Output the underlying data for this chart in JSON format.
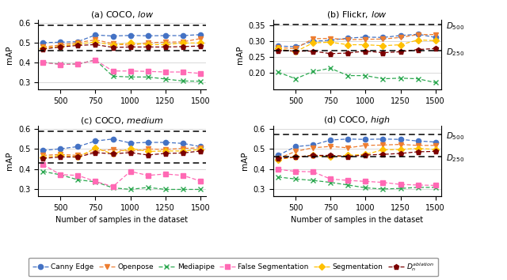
{
  "x": [
    375,
    500,
    625,
    750,
    875,
    1000,
    1125,
    1250,
    1375,
    1500
  ],
  "panels": [
    {
      "title": "(a) COCO, ",
      "title_italic": "low",
      "ylim": [
        0.265,
        0.615
      ],
      "yticks": [
        0.3,
        0.4,
        0.5,
        0.6
      ],
      "ytick_labels": [
        "0.3",
        "0.4",
        "0.5",
        "0.6"
      ],
      "d500": 0.588,
      "d250": 0.459,
      "show_right_labels": false,
      "series": {
        "canny": [
          0.5,
          0.502,
          0.505,
          0.538,
          0.533,
          0.536,
          0.534,
          0.535,
          0.535,
          0.54
        ],
        "openpose": [
          0.478,
          0.488,
          0.5,
          0.514,
          0.495,
          0.486,
          0.5,
          0.502,
          0.504,
          0.52
        ],
        "mediapipe": [
          0.402,
          0.392,
          0.393,
          0.413,
          0.332,
          0.328,
          0.328,
          0.318,
          0.308,
          0.307
        ],
        "falseseg": [
          0.401,
          0.39,
          0.393,
          0.412,
          0.358,
          0.358,
          0.356,
          0.353,
          0.353,
          0.346
        ],
        "segmentation": [
          0.473,
          0.481,
          0.493,
          0.503,
          0.488,
          0.498,
          0.49,
          0.49,
          0.498,
          0.498
        ],
        "ablation": [
          0.468,
          0.478,
          0.486,
          0.49,
          0.476,
          0.478,
          0.478,
          0.478,
          0.48,
          0.483
        ]
      }
    },
    {
      "title": "(b) Flickr, ",
      "title_italic": "low",
      "ylim": [
        0.148,
        0.368
      ],
      "yticks": [
        0.2,
        0.25,
        0.3,
        0.35
      ],
      "ytick_labels": [
        "0.20",
        "0.25",
        "0.30",
        "0.35"
      ],
      "d500": 0.352,
      "d250": 0.27,
      "show_right_labels": true,
      "series": {
        "canny": [
          0.285,
          0.283,
          0.3,
          0.303,
          0.31,
          0.313,
          0.312,
          0.318,
          0.322,
          0.312
        ],
        "openpose": [
          0.28,
          0.277,
          0.308,
          0.309,
          0.305,
          0.306,
          0.307,
          0.312,
          0.321,
          0.321
        ],
        "mediapipe": [
          0.203,
          0.182,
          0.205,
          0.215,
          0.192,
          0.192,
          0.182,
          0.184,
          0.182,
          0.17
        ],
        "falseseg": [
          null,
          null,
          null,
          null,
          null,
          null,
          null,
          null,
          null,
          null
        ],
        "segmentation": [
          0.277,
          0.267,
          0.295,
          0.297,
          0.289,
          0.289,
          0.286,
          0.289,
          0.304,
          0.302
        ],
        "ablation": [
          0.271,
          0.269,
          0.269,
          0.261,
          0.263,
          0.269,
          0.264,
          0.267,
          0.274,
          0.277
        ]
      }
    },
    {
      "title": "(c) COCO, ",
      "title_italic": "medium",
      "ylim": [
        0.265,
        0.615
      ],
      "yticks": [
        0.3,
        0.4,
        0.5,
        0.6
      ],
      "ytick_labels": [
        "0.3",
        "0.4",
        "0.5",
        "0.6"
      ],
      "d500": 0.588,
      "d250": 0.432,
      "show_right_labels": false,
      "series": {
        "canny": [
          0.493,
          0.501,
          0.512,
          0.54,
          0.55,
          0.53,
          0.533,
          0.533,
          0.528,
          0.512
        ],
        "openpose": [
          0.468,
          0.473,
          0.468,
          0.488,
          0.498,
          0.488,
          0.5,
          0.498,
          0.503,
          0.506
        ],
        "mediapipe": [
          0.388,
          0.371,
          0.346,
          0.336,
          0.306,
          0.298,
          0.308,
          0.298,
          0.298,
          0.298
        ],
        "falseseg": [
          0.422,
          0.372,
          0.368,
          0.338,
          0.312,
          0.388,
          0.368,
          0.375,
          0.368,
          0.34
        ],
        "segmentation": [
          0.458,
          0.468,
          0.46,
          0.504,
          0.476,
          0.503,
          0.488,
          0.49,
          0.49,
          0.498
        ],
        "ablation": [
          0.453,
          0.46,
          0.46,
          0.482,
          0.476,
          0.482,
          0.47,
          0.478,
          0.48,
          0.49
        ]
      }
    },
    {
      "title": "(d) COCO, ",
      "title_italic": "high",
      "ylim": [
        0.265,
        0.615
      ],
      "yticks": [
        0.3,
        0.4,
        0.5,
        0.6
      ],
      "ytick_labels": [
        "0.3",
        "0.4",
        "0.5",
        "0.6"
      ],
      "d500": 0.572,
      "d250": 0.462,
      "show_right_labels": true,
      "series": {
        "canny": [
          0.468,
          0.512,
          0.52,
          0.545,
          0.55,
          0.548,
          0.55,
          0.548,
          0.54,
          0.535
        ],
        "openpose": [
          0.453,
          0.488,
          0.506,
          0.513,
          0.506,
          0.518,
          0.52,
          0.523,
          0.518,
          0.518
        ],
        "mediapipe": [
          0.36,
          0.35,
          0.343,
          0.333,
          0.32,
          0.306,
          0.3,
          0.303,
          0.308,
          0.308
        ],
        "falseseg": [
          0.398,
          0.388,
          0.386,
          0.35,
          0.343,
          0.338,
          0.333,
          0.323,
          0.32,
          0.318
        ],
        "segmentation": [
          0.448,
          0.46,
          0.468,
          0.46,
          0.468,
          0.473,
          0.496,
          0.498,
          0.503,
          0.498
        ],
        "ablation": [
          0.453,
          0.46,
          0.468,
          0.468,
          0.463,
          0.47,
          0.473,
          0.478,
          0.486,
          0.488
        ]
      }
    }
  ],
  "colors": {
    "canny": "#4472C4",
    "openpose": "#ED7D31",
    "mediapipe": "#2CA850",
    "falseseg": "#FF69B4",
    "segmentation": "#FFC000",
    "ablation": "#7B0000"
  },
  "markers": {
    "canny": "o",
    "openpose": "v",
    "mediapipe": "x",
    "falseseg": "s",
    "segmentation": "D",
    "ablation": "p"
  },
  "markersize": {
    "canny": 4.5,
    "openpose": 4.5,
    "mediapipe": 5,
    "falseseg": 4.5,
    "segmentation": 4.5,
    "ablation": 4.5
  },
  "legend_labels": {
    "canny": "Canny Edge",
    "openpose": "Openpose",
    "mediapipe": "Mediapipe",
    "falseseg": "False Segmentation",
    "segmentation": "Segmentation",
    "ablation": "$D_n^{ablation}$"
  },
  "series_keys": [
    "canny",
    "openpose",
    "mediapipe",
    "falseseg",
    "segmentation",
    "ablation"
  ],
  "figsize": [
    6.4,
    3.54
  ],
  "dpi": 100
}
